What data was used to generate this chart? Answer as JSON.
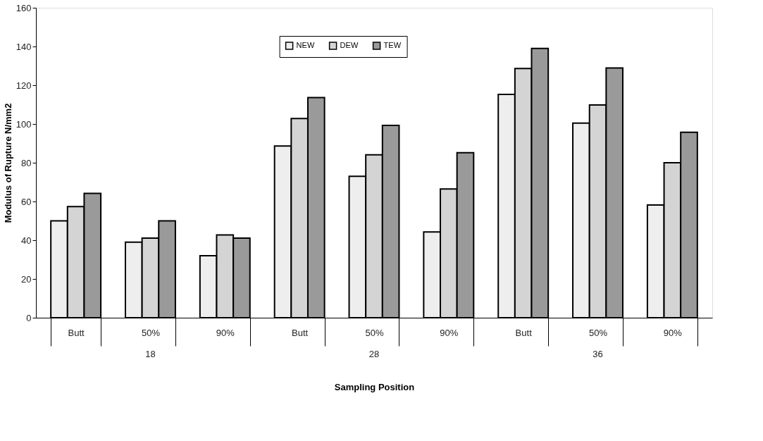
{
  "chart_data": {
    "type": "bar",
    "xlabel": "Sampling Position",
    "ylabel": "Modulus of Rupture N/mm2",
    "categories": [
      "Butt",
      "50%",
      "90%",
      "Butt",
      "50%",
      "90%",
      "Butt",
      "50%",
      "90%"
    ],
    "annotations": [
      "18",
      "28",
      "36"
    ],
    "series": [
      {
        "name": "NEW",
        "color": "#eeeeee",
        "values": [
          50,
          39,
          32,
          88.6,
          73,
          44.3,
          115.3,
          100.5,
          58.2
        ]
      },
      {
        "name": "DEW",
        "color": "#d4d4d4",
        "values": [
          57.4,
          41.1,
          42.7,
          102.8,
          84.1,
          66.5,
          128.6,
          109.8,
          80
        ]
      },
      {
        "name": "TEW",
        "color": "#9a9a9a",
        "values": [
          64.2,
          50,
          41.1,
          113.6,
          99.3,
          85.2,
          139,
          128.9,
          95.7
        ]
      }
    ],
    "ylim": [
      0,
      160
    ],
    "yticks": [
      0,
      20,
      40,
      60,
      80,
      100,
      120,
      140,
      160
    ],
    "grid": false,
    "legend": "top"
  }
}
